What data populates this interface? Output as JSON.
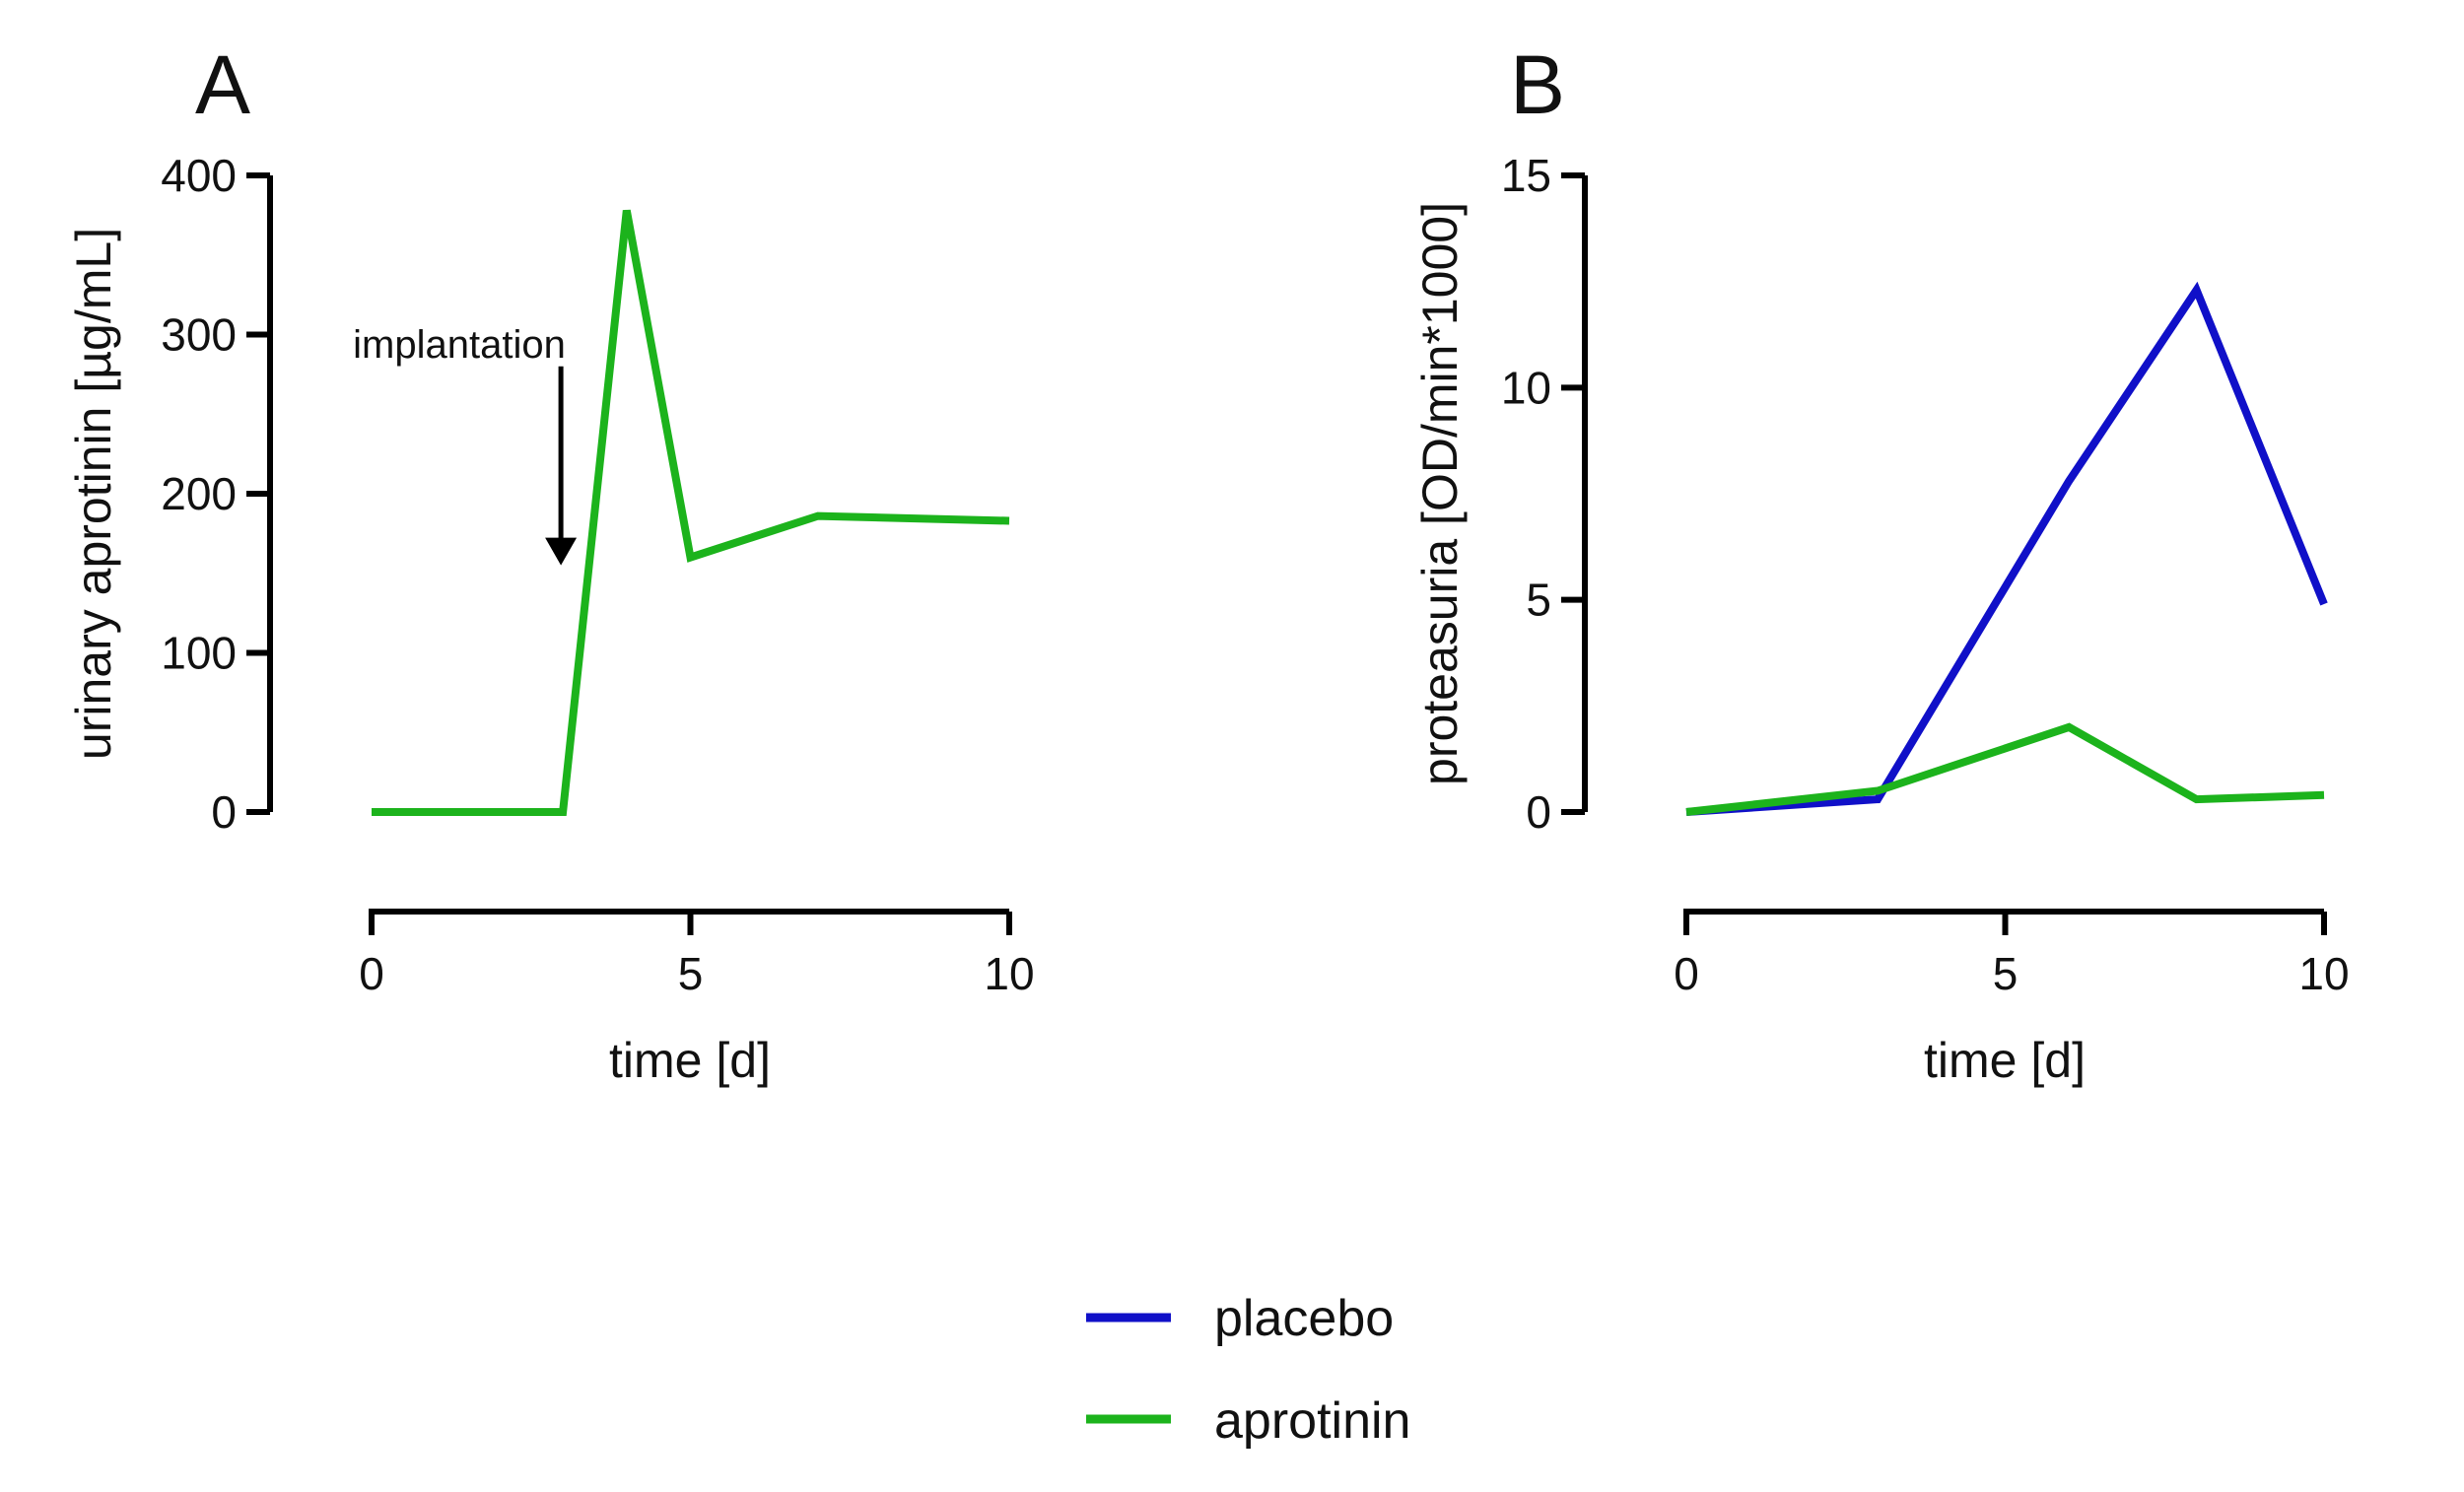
{
  "chart_data": [
    {
      "type": "line",
      "panel": "A",
      "title": "",
      "xlabel": "time [d]",
      "ylabel": "urinary aprotinin [µg/mL]",
      "xlim": [
        0,
        10
      ],
      "ylim": [
        0,
        400
      ],
      "xticks": [
        0,
        5,
        10
      ],
      "yticks": [
        0,
        100,
        200,
        300,
        400
      ],
      "grid": false,
      "series": [
        {
          "name": "aprotinin",
          "color": "#1cb31c",
          "x": [
            0,
            3,
            4,
            5,
            7,
            10
          ],
          "y": [
            0,
            0,
            378,
            160,
            186,
            183
          ]
        }
      ],
      "annotations": [
        {
          "text": "implantation",
          "arrow_at_x": 3,
          "arrow_from_y": 280,
          "arrow_to_y": 155
        }
      ]
    },
    {
      "type": "line",
      "panel": "B",
      "title": "",
      "xlabel": "time [d]",
      "ylabel": "proteasuria [OD/min*1000]",
      "xlim": [
        0,
        10
      ],
      "ylim": [
        0,
        15
      ],
      "xticks": [
        0,
        5,
        10
      ],
      "yticks": [
        0,
        5,
        10,
        15
      ],
      "grid": false,
      "series": [
        {
          "name": "placebo",
          "color": "#1010c8",
          "x": [
            0,
            3,
            6,
            8,
            10
          ],
          "y": [
            0,
            0.3,
            7.8,
            12.3,
            4.9
          ]
        },
        {
          "name": "aprotinin",
          "color": "#1cb31c",
          "x": [
            0,
            3,
            6,
            8,
            10
          ],
          "y": [
            0,
            0.5,
            2.0,
            0.3,
            0.4
          ]
        }
      ]
    }
  ],
  "legend": {
    "placement": "bottom-center",
    "items": [
      {
        "label": "placebo",
        "color": "#1010c8"
      },
      {
        "label": "aprotinin",
        "color": "#1cb31c"
      }
    ]
  }
}
